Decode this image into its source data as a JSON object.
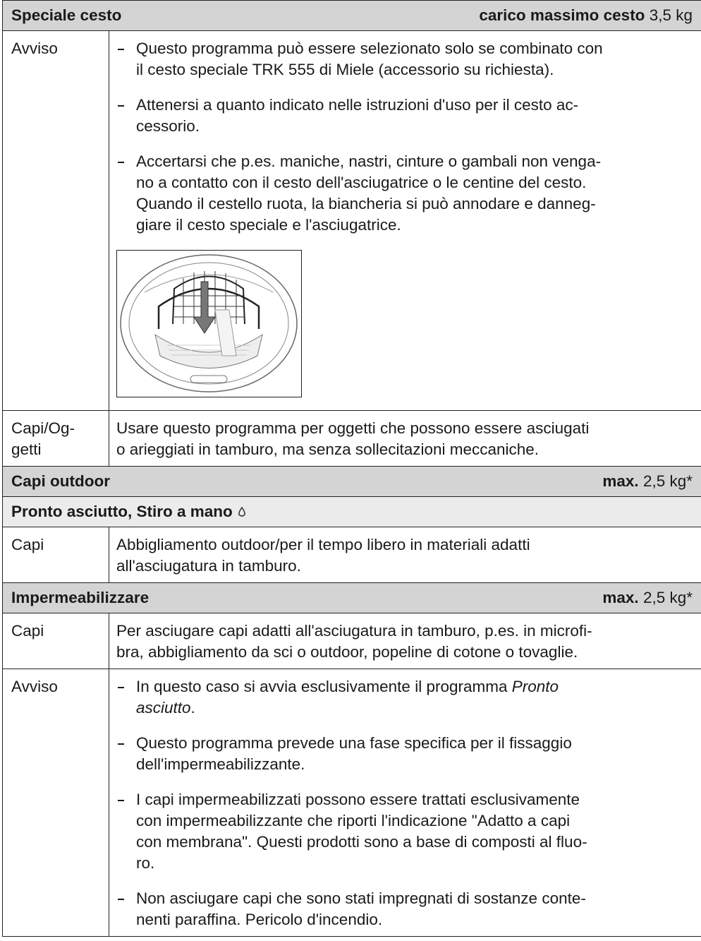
{
  "sections": [
    {
      "header": {
        "title": "Speciale cesto",
        "load_label": "carico massimo cesto",
        "load": "3,5 kg"
      },
      "rows": [
        {
          "label": [
            "Avviso"
          ],
          "bullets": [
            [
              "Questo programma può essere selezionato solo se combinato con",
              "il cesto speciale TRK 555 di Miele (accessorio su richiesta)."
            ],
            [
              "Attenersi a quanto indicato nelle istruzioni d'uso per il cesto ac-",
              "cessorio."
            ],
            [
              "Accertarsi che p.es. maniche, nastri, cinture o gambali non venga-",
              "no a contatto con il cesto dell'asciugatrice o le centine del cesto.",
              "Quando il cestello ruota, la biancheria si può annodare e danneg-",
              "giare il cesto speciale e l'asciugatrice."
            ]
          ]
        },
        {
          "label": [
            "Capi/Og-",
            "getti"
          ],
          "text": [
            "Usare questo programma per oggetti che possono essere asciugati",
            "o arieggiati in tamburo, ma senza sollecitazioni meccaniche."
          ]
        }
      ]
    },
    {
      "header": {
        "title": "Capi outdoor",
        "load_label": "max.",
        "load": "2,5 kg*"
      },
      "subheader": "Pronto asciutto, Stiro a mano",
      "rows": [
        {
          "label": [
            "Capi"
          ],
          "text": [
            "Abbigliamento outdoor/per il tempo libero in materiali adatti",
            "all'asciugatura in tamburo."
          ]
        }
      ]
    },
    {
      "header": {
        "title": "Impermeabilizzare",
        "load_label": "max.",
        "load": "2,5 kg*"
      },
      "rows": [
        {
          "label": [
            "Capi"
          ],
          "text": [
            "Per asciugare capi adatti all'asciugatura in tamburo, p.es. in microfi-",
            "bra, abbigliamento da sci o outdoor, popeline di cotone o tovaglie."
          ]
        },
        {
          "label": [
            "Avviso"
          ],
          "bullets": [
            [
              [
                "In questo caso si avvia esclusivamente il programma ",
                {
                  "em": "Pronto"
                }
              ],
              [
                {
                  "em": "asciutto"
                },
                "."
              ]
            ],
            [
              "Questo programma prevede una fase specifica per il fissaggio",
              "dell'impermeabilizzante."
            ],
            [
              "I capi impermeabilizzati possono essere trattati esclusivamente",
              "con impermeabilizzante che riporti l'indicazione \"Adatto a capi",
              "con membrana\". Questi prodotti sono a base di composti al fluo-",
              "ro."
            ],
            [
              "Non asciugare capi che sono stati impregnati di sostanze conte-",
              "nenti paraffina. Pericolo d'incendio."
            ]
          ]
        }
      ]
    }
  ]
}
